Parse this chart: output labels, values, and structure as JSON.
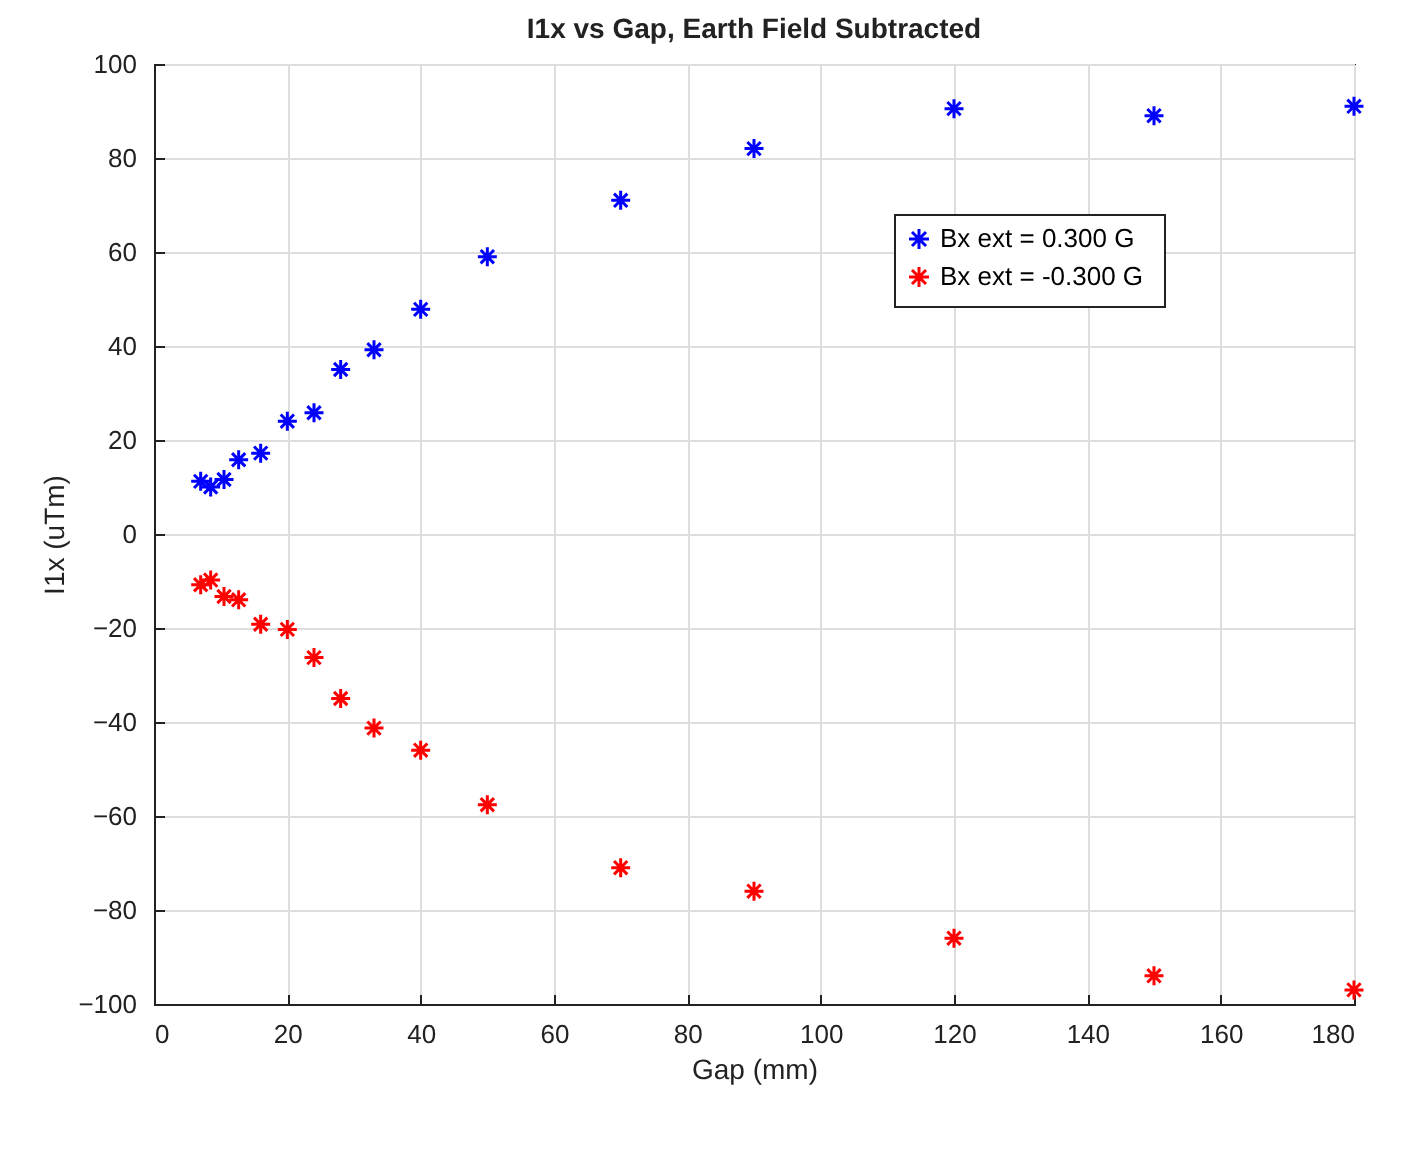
{
  "chart_data": {
    "type": "scatter",
    "title": "I1x vs Gap, Earth Field Subtracted",
    "xlabel": "Gap (mm)",
    "ylabel": "I1x (uTm)",
    "x": [
      7,
      8.5,
      10.5,
      12.7,
      16,
      20,
      24,
      28,
      33,
      40,
      50,
      70,
      90,
      120,
      150,
      180
    ],
    "series": [
      {
        "name": "Bx ext =   0.300 G",
        "color": "#0000ff",
        "values": [
          11.2,
          10,
          11.6,
          15.8,
          17.2,
          24,
          25.8,
          35,
          39.2,
          47.8,
          59,
          71,
          82,
          90.5,
          89,
          91
        ]
      },
      {
        "name": "Bx ext =  -0.300 G",
        "color": "#ff0000",
        "values": [
          -10.8,
          -9.8,
          -13.3,
          -14,
          -19.2,
          -20.3,
          -26.3,
          -35,
          -41.3,
          -46,
          -57.6,
          -71,
          -76,
          -86,
          -94,
          -97
        ]
      }
    ],
    "xlim": [
      0,
      180
    ],
    "ylim": [
      -100,
      100
    ],
    "xticks": [
      0,
      20,
      40,
      60,
      80,
      100,
      120,
      140,
      160,
      180
    ],
    "yticks": [
      -100,
      -80,
      -60,
      -40,
      -20,
      0,
      20,
      40,
      60,
      80,
      100
    ],
    "grid": true,
    "legend": "top right",
    "marker": "cross"
  }
}
